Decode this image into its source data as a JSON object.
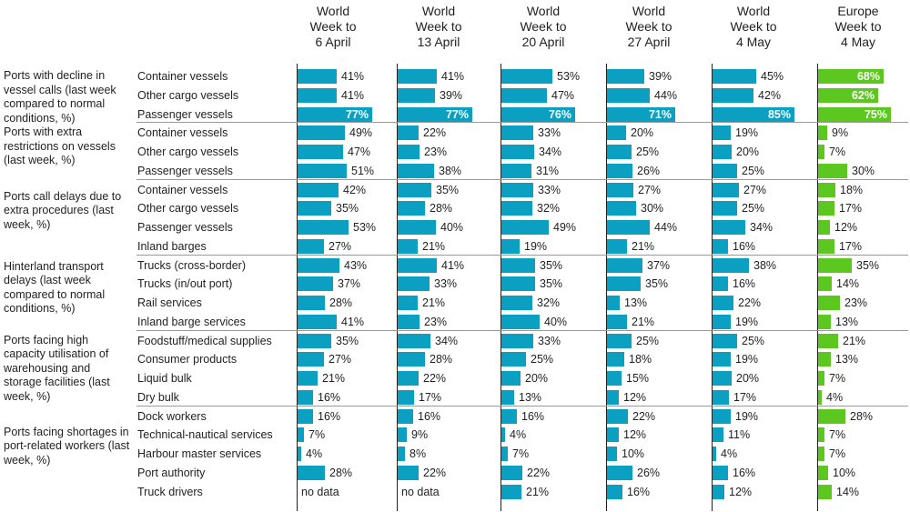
{
  "chart_data": {
    "type": "bar",
    "orientation": "horizontal",
    "title": "",
    "value_format": "percent",
    "columns": [
      {
        "key": "w1",
        "region": "World",
        "line2": "Week to",
        "line3": "6 April",
        "color": "#0b9fc2"
      },
      {
        "key": "w2",
        "region": "World",
        "line2": "Week to",
        "line3": "13 April",
        "color": "#0b9fc2"
      },
      {
        "key": "w3",
        "region": "World",
        "line2": "Week to",
        "line3": "20 April",
        "color": "#0b9fc2"
      },
      {
        "key": "w4",
        "region": "World",
        "line2": "Week to",
        "line3": "27 April",
        "color": "#0b9fc2"
      },
      {
        "key": "w5",
        "region": "World",
        "line2": "Week to",
        "line3": "4 May",
        "color": "#0b9fc2"
      },
      {
        "key": "eu",
        "region": "Europe",
        "line2": "Week to",
        "line3": "4 May",
        "color": "#5cc71f"
      }
    ],
    "no_data_label": "no data",
    "groups": [
      {
        "label": "Ports with decline in vessel calls (last week compared to normal conditions, %)",
        "rows": [
          {
            "label": "Container vessels",
            "values": [
              41,
              41,
              53,
              39,
              45,
              68
            ]
          },
          {
            "label": "Other cargo vessels",
            "values": [
              41,
              39,
              47,
              44,
              42,
              62
            ]
          },
          {
            "label": "Passenger vessels",
            "values": [
              77,
              77,
              76,
              71,
              85,
              75
            ]
          }
        ]
      },
      {
        "label": "Ports with extra restrictions on vessels (last week, %)",
        "rows": [
          {
            "label": "Container vessels",
            "values": [
              49,
              22,
              33,
              20,
              19,
              9
            ]
          },
          {
            "label": "Other cargo vessels",
            "values": [
              47,
              23,
              34,
              25,
              20,
              7
            ]
          },
          {
            "label": "Passenger vessels",
            "values": [
              51,
              38,
              31,
              26,
              25,
              30
            ]
          }
        ]
      },
      {
        "label": "Ports call delays due to extra procedures (last week, %)",
        "rows": [
          {
            "label": "Container vessels",
            "values": [
              42,
              35,
              33,
              27,
              27,
              18
            ]
          },
          {
            "label": "Other cargo vessels",
            "values": [
              35,
              28,
              32,
              30,
              25,
              17
            ]
          },
          {
            "label": "Passenger vessels",
            "values": [
              53,
              40,
              49,
              44,
              34,
              12
            ]
          },
          {
            "label": "Inland barges",
            "values": [
              27,
              21,
              19,
              21,
              16,
              17
            ]
          }
        ]
      },
      {
        "label": "Hinterland transport delays (last week compared to normal conditions, %)",
        "rows": [
          {
            "label": "Trucks (cross-border)",
            "values": [
              43,
              41,
              35,
              37,
              38,
              35
            ]
          },
          {
            "label": "Trucks (in/out port)",
            "values": [
              37,
              33,
              35,
              35,
              16,
              14
            ]
          },
          {
            "label": "Rail services",
            "values": [
              28,
              21,
              32,
              13,
              22,
              23
            ]
          },
          {
            "label": "Inland barge services",
            "values": [
              41,
              23,
              40,
              21,
              19,
              13
            ]
          }
        ]
      },
      {
        "label": "Ports facing high capacity utilisation of warehousing and storage facilities (last week, %)",
        "rows": [
          {
            "label": "Foodstuff/medical supplies",
            "values": [
              35,
              34,
              33,
              25,
              25,
              21
            ]
          },
          {
            "label": "Consumer products",
            "values": [
              27,
              28,
              25,
              18,
              19,
              13
            ]
          },
          {
            "label": "Liquid bulk",
            "values": [
              21,
              22,
              20,
              15,
              20,
              7
            ]
          },
          {
            "label": "Dry bulk",
            "values": [
              16,
              17,
              13,
              12,
              17,
              4
            ]
          }
        ]
      },
      {
        "label": "Ports facing shortages in port-related workers (last week, %)",
        "rows": [
          {
            "label": "Dock workers",
            "values": [
              16,
              16,
              16,
              22,
              19,
              28
            ]
          },
          {
            "label": "Technical-nautical services",
            "values": [
              7,
              9,
              4,
              12,
              11,
              7
            ]
          },
          {
            "label": "Harbour master services",
            "values": [
              4,
              8,
              7,
              10,
              4,
              7
            ]
          },
          {
            "label": "Port authority",
            "values": [
              28,
              22,
              22,
              26,
              16,
              10
            ]
          },
          {
            "label": "Truck drivers",
            "values": [
              null,
              null,
              21,
              16,
              12,
              14
            ]
          }
        ]
      }
    ]
  }
}
